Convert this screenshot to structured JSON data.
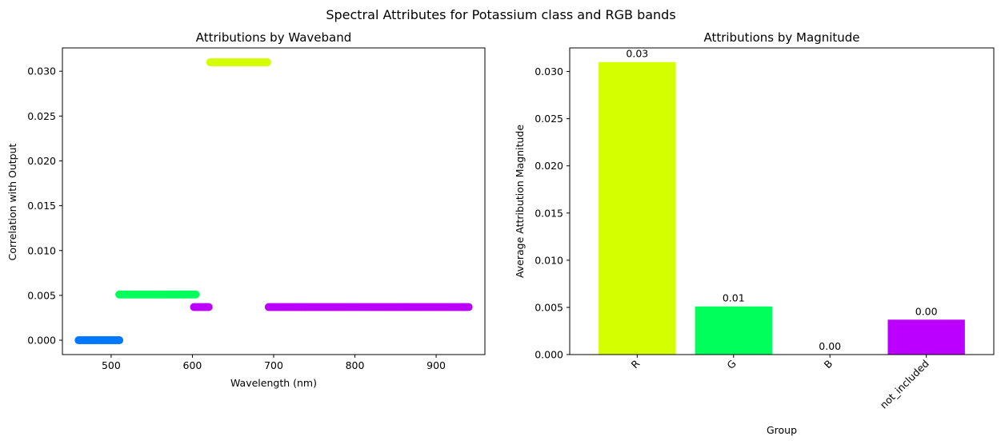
{
  "figure": {
    "suptitle": "Spectral Attributes for Potassium class and RGB bands"
  },
  "chart_data": [
    {
      "type": "scatter",
      "title": "Attributions by Waveband",
      "xlabel": "Wavelength (nm)",
      "ylabel": "Correlation with Output",
      "xlim": [
        440,
        960
      ],
      "ylim": [
        -0.0016,
        0.0326
      ],
      "xticks": [
        500,
        600,
        700,
        800,
        900
      ],
      "yticks": [
        0.0,
        0.005,
        0.01,
        0.015,
        0.02,
        0.025,
        0.03
      ],
      "ytick_format": 3,
      "grid": false,
      "series": [
        {
          "color": "#0077ff",
          "x_start": 460,
          "x_end": 510,
          "step": 2,
          "y": 0.0
        },
        {
          "color": "#00ff5a",
          "x_start": 510,
          "x_end": 604,
          "step": 2,
          "y": 0.0051
        },
        {
          "color": "#bb00ff",
          "x_start": 602,
          "x_end": 620,
          "step": 2,
          "y": 0.0037
        },
        {
          "color": "#d4ff00",
          "x_start": 622,
          "x_end": 692,
          "step": 2,
          "y": 0.031
        },
        {
          "color": "#bb00ff",
          "x_start": 694,
          "x_end": 940,
          "step": 2,
          "y": 0.0037
        }
      ]
    },
    {
      "type": "bar",
      "title": "Attributions by Magnitude",
      "xlabel": "Group",
      "ylabel": "Average Attribution Magnitude",
      "categories": [
        "R",
        "G",
        "B",
        "not_included"
      ],
      "values": [
        0.031,
        0.0051,
        0.0,
        0.0037
      ],
      "data_labels": [
        "0.03",
        "0.01",
        "0.00",
        "0.00"
      ],
      "colors": [
        "#d4ff00",
        "#00ff5a",
        "#0077ff",
        "#bb00ff"
      ],
      "ylim": [
        0,
        0.0325
      ],
      "yticks": [
        0.0,
        0.005,
        0.01,
        0.015,
        0.02,
        0.025,
        0.03
      ],
      "ytick_format": 3,
      "xtick_rotation": 45,
      "grid": false
    }
  ]
}
